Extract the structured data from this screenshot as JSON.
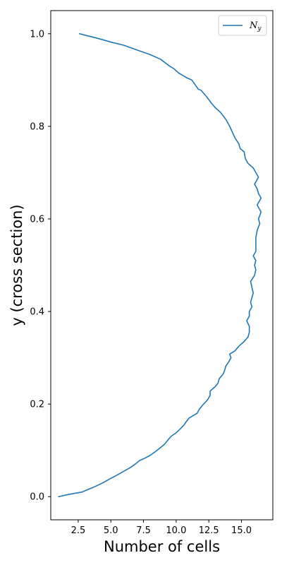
{
  "chart_data": {
    "type": "line",
    "xlabel": "Number of cells",
    "ylabel": "y (cross section)",
    "xlim": [
      0.4,
      17.4
    ],
    "ylim": [
      -0.05,
      1.05
    ],
    "xticks": [
      2.5,
      5.0,
      7.5,
      10.0,
      12.5,
      15.0
    ],
    "xtick_labels": [
      "2.5",
      "5.0",
      "7.5",
      "10.0",
      "12.5",
      "15.0"
    ],
    "yticks": [
      0.0,
      0.2,
      0.4,
      0.6,
      0.8,
      1.0
    ],
    "ytick_labels": [
      "0.0",
      "0.2",
      "0.4",
      "0.6",
      "0.8",
      "1.0"
    ],
    "legend_position": "top-right",
    "grid": false,
    "series": [
      {
        "name": "N_y",
        "label_main": "N",
        "label_sub": "y",
        "color": "#1f77b4",
        "x": [
          1.0,
          1.8,
          2.8,
          3.3,
          3.8,
          4.4,
          4.9,
          5.5,
          6.0,
          6.5,
          6.9,
          7.2,
          7.6,
          8.0,
          8.4,
          8.8,
          9.1,
          9.3,
          9.6,
          10.0,
          10.3,
          10.6,
          10.8,
          11.0,
          11.6,
          11.8,
          12.1,
          12.4,
          12.6,
          12.6,
          13.0,
          13.2,
          13.3,
          13.6,
          13.7,
          13.8,
          14.0,
          14.2,
          14.1,
          14.5,
          14.8,
          15.2,
          15.5,
          15.6,
          15.6,
          15.4,
          15.6,
          15.6,
          15.8,
          15.7,
          15.8,
          15.9,
          15.8,
          15.7,
          16.0,
          16.1,
          16.0,
          16.1,
          15.9,
          16.1,
          16.1,
          16.1,
          16.2,
          16.4,
          16.3,
          16.5,
          16.2,
          16.5,
          16.3,
          16.2,
          16.0,
          16.3,
          15.9,
          15.5,
          15.3,
          15.2,
          14.9,
          14.8,
          14.5,
          14.1,
          13.8,
          13.4,
          13.0,
          12.7,
          12.3,
          11.9,
          11.7,
          11.2,
          10.8,
          10.2,
          9.8,
          9.5,
          8.8,
          8.0,
          7.0,
          6.0,
          5.0,
          4.0,
          3.3,
          2.6
        ],
        "y": [
          0.0,
          0.005,
          0.01,
          0.016,
          0.022,
          0.03,
          0.038,
          0.047,
          0.055,
          0.063,
          0.071,
          0.078,
          0.083,
          0.089,
          0.097,
          0.106,
          0.113,
          0.12,
          0.13,
          0.138,
          0.146,
          0.155,
          0.163,
          0.17,
          0.18,
          0.19,
          0.2,
          0.209,
          0.219,
          0.228,
          0.238,
          0.245,
          0.255,
          0.265,
          0.272,
          0.282,
          0.29,
          0.3,
          0.308,
          0.315,
          0.325,
          0.335,
          0.345,
          0.355,
          0.368,
          0.38,
          0.39,
          0.4,
          0.41,
          0.42,
          0.43,
          0.44,
          0.452,
          0.465,
          0.478,
          0.49,
          0.5,
          0.51,
          0.52,
          0.53,
          0.545,
          0.56,
          0.575,
          0.59,
          0.6,
          0.615,
          0.63,
          0.645,
          0.655,
          0.665,
          0.675,
          0.69,
          0.71,
          0.72,
          0.73,
          0.745,
          0.752,
          0.762,
          0.775,
          0.8,
          0.815,
          0.83,
          0.84,
          0.85,
          0.865,
          0.878,
          0.88,
          0.9,
          0.905,
          0.915,
          0.925,
          0.93,
          0.945,
          0.955,
          0.965,
          0.975,
          0.982,
          0.99,
          0.995,
          1.0
        ]
      }
    ]
  }
}
